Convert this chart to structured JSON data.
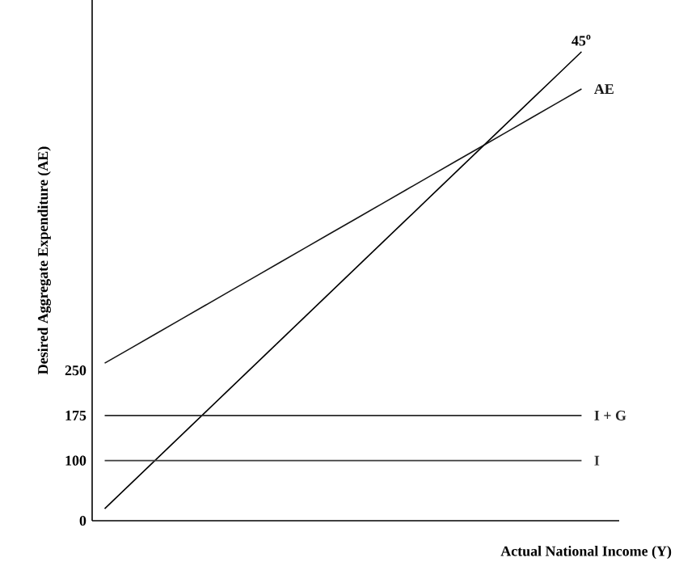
{
  "chart_data": {
    "type": "line",
    "xlabel": "Actual National Income (Y)",
    "ylabel": "Desired Aggregate Expenditure (AE)",
    "categories": [
      null,
      null,
      null,
      null,
      null,
      null,
      null,
      null,
      null,
      null,
      null,
      null,
      null,
      null,
      null,
      null,
      null,
      null,
      null,
      null
    ],
    "ylim": [
      0,
      866
    ],
    "yticks": [
      0,
      100,
      175,
      250
    ],
    "tick_labels": "y",
    "marker": "none",
    "line_style": "solid",
    "series": [
      {
        "name": "45$^{o}$",
        "color": "#000000",
        "values": [
          20,
          60,
          100,
          140,
          180,
          220,
          260,
          300,
          340,
          380,
          420,
          460,
          500,
          540,
          580,
          620,
          660,
          700,
          740,
          780
        ]
      },
      {
        "name": "AE",
        "color": "#141414",
        "values": [
          262,
          286,
          310,
          334,
          358,
          382,
          406,
          430,
          454,
          478,
          502,
          526,
          550,
          574,
          598,
          622,
          646,
          670,
          694,
          718
        ]
      },
      {
        "name": "I + G",
        "color": "#282828",
        "values": [
          175,
          175,
          175,
          175,
          175,
          175,
          175,
          175,
          175,
          175,
          175,
          175,
          175,
          175,
          175,
          175,
          175,
          175,
          175,
          175
        ]
      },
      {
        "name": "I",
        "color": "#3c3c3c",
        "values": [
          100,
          100,
          100,
          100,
          100,
          100,
          100,
          100,
          100,
          100,
          100,
          100,
          100,
          100,
          100,
          100,
          100,
          100,
          100,
          100
        ]
      }
    ]
  }
}
